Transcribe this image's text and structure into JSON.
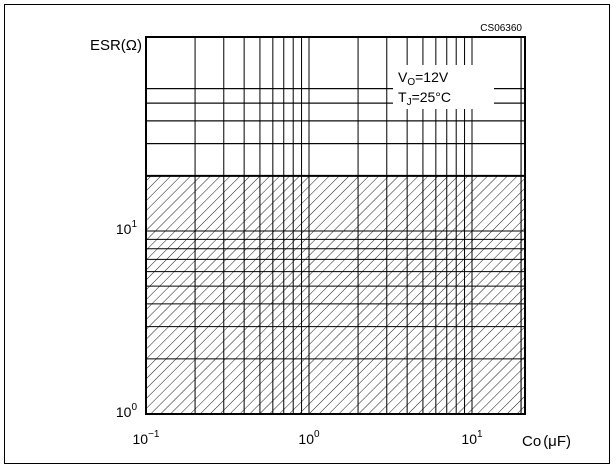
{
  "figure_code": "CS06360",
  "chart_data": {
    "type": "area",
    "ylabel": "ESR(Ω)",
    "xlabel_main": "Co",
    "xlabel_unit": "(μF)",
    "x_scale": "log",
    "y_scale": "log",
    "xlim": [
      0.1,
      60
    ],
    "ylim": [
      1,
      60
    ],
    "x_ticks": [
      {
        "value": 0.1,
        "base": "10",
        "exp": "−1"
      },
      {
        "value": 1,
        "base": "10",
        "exp": "0"
      },
      {
        "value": 10,
        "base": "10",
        "exp": "1"
      }
    ],
    "y_ticks": [
      {
        "value": 1,
        "base": "10",
        "exp": "0"
      },
      {
        "value": 10,
        "base": "10",
        "exp": "1"
      }
    ],
    "stable_region": {
      "x_range": [
        0.1,
        60
      ],
      "y_range": [
        1,
        20
      ],
      "pattern": "hatched"
    },
    "conditions": {
      "vo_sym": "V",
      "vo_sub": "O",
      "vo_val": "=12V",
      "tj_sym": "T",
      "tj_sub": "J",
      "tj_val": "=25°C"
    },
    "grid": true
  }
}
